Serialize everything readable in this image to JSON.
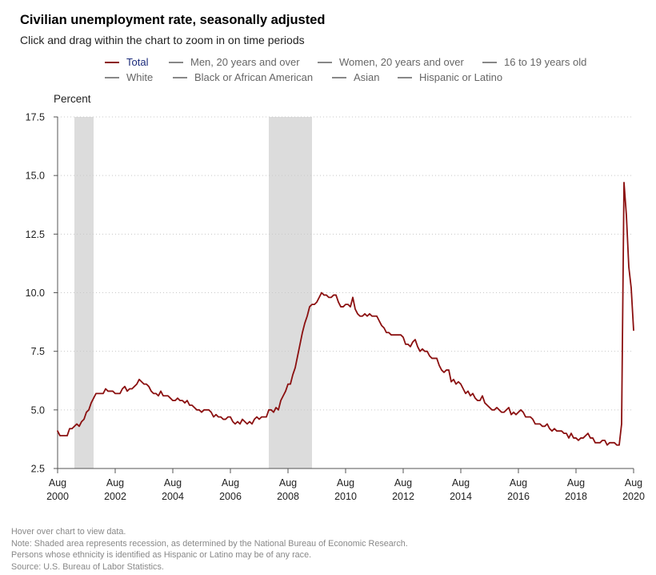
{
  "header": {
    "title": "Civilian unemployment rate, seasonally adjusted",
    "subtitle": "Click and drag within the chart to zoom in on time periods"
  },
  "legend": {
    "items": [
      {
        "label": "Total",
        "active": true
      },
      {
        "label": "Men, 20 years and over",
        "active": false
      },
      {
        "label": "Women, 20 years and over",
        "active": false
      },
      {
        "label": "16 to 19 years old",
        "active": false
      },
      {
        "label": "White",
        "active": false
      },
      {
        "label": "Black or African American",
        "active": false
      },
      {
        "label": "Asian",
        "active": false
      },
      {
        "label": "Hispanic or Latino",
        "active": false
      }
    ]
  },
  "colors": {
    "series_total": "#8b1010",
    "legend_active_text": "#1a2a7a",
    "recession_shade": "#dcdcdc",
    "grid": "#c8c8c8"
  },
  "chart_data": {
    "type": "line",
    "ylabel": "Percent",
    "ylim": [
      2.5,
      17.5
    ],
    "yticks": [
      "2.5",
      "5.0",
      "7.5",
      "10.0",
      "12.5",
      "15.0",
      "17.5"
    ],
    "xlim": [
      "2000-08",
      "2020-08"
    ],
    "xticks": [
      {
        "month": "Aug",
        "year": "2000"
      },
      {
        "month": "Aug",
        "year": "2002"
      },
      {
        "month": "Aug",
        "year": "2004"
      },
      {
        "month": "Aug",
        "year": "2006"
      },
      {
        "month": "Aug",
        "year": "2008"
      },
      {
        "month": "Aug",
        "year": "2010"
      },
      {
        "month": "Aug",
        "year": "2012"
      },
      {
        "month": "Aug",
        "year": "2014"
      },
      {
        "month": "Aug",
        "year": "2016"
      },
      {
        "month": "Aug",
        "year": "2018"
      },
      {
        "month": "Aug",
        "year": "2020"
      }
    ],
    "grid": "horizontal dotted",
    "legend_position": "top",
    "recessions": [
      {
        "start": "2001-03",
        "end": "2001-11"
      },
      {
        "start": "2007-12",
        "end": "2009-06"
      }
    ],
    "series": [
      {
        "name": "Total",
        "points": [
          [
            "2000-08",
            4.1
          ],
          [
            "2000-09",
            3.9
          ],
          [
            "2000-10",
            3.9
          ],
          [
            "2000-11",
            3.9
          ],
          [
            "2000-12",
            3.9
          ],
          [
            "2001-01",
            4.2
          ],
          [
            "2001-02",
            4.2
          ],
          [
            "2001-03",
            4.3
          ],
          [
            "2001-04",
            4.4
          ],
          [
            "2001-05",
            4.3
          ],
          [
            "2001-06",
            4.5
          ],
          [
            "2001-07",
            4.6
          ],
          [
            "2001-08",
            4.9
          ],
          [
            "2001-09",
            5.0
          ],
          [
            "2001-10",
            5.3
          ],
          [
            "2001-11",
            5.5
          ],
          [
            "2001-12",
            5.7
          ],
          [
            "2002-01",
            5.7
          ],
          [
            "2002-02",
            5.7
          ],
          [
            "2002-03",
            5.7
          ],
          [
            "2002-04",
            5.9
          ],
          [
            "2002-05",
            5.8
          ],
          [
            "2002-06",
            5.8
          ],
          [
            "2002-07",
            5.8
          ],
          [
            "2002-08",
            5.7
          ],
          [
            "2002-09",
            5.7
          ],
          [
            "2002-10",
            5.7
          ],
          [
            "2002-11",
            5.9
          ],
          [
            "2002-12",
            6.0
          ],
          [
            "2003-01",
            5.8
          ],
          [
            "2003-02",
            5.9
          ],
          [
            "2003-03",
            5.9
          ],
          [
            "2003-04",
            6.0
          ],
          [
            "2003-05",
            6.1
          ],
          [
            "2003-06",
            6.3
          ],
          [
            "2003-07",
            6.2
          ],
          [
            "2003-08",
            6.1
          ],
          [
            "2003-09",
            6.1
          ],
          [
            "2003-10",
            6.0
          ],
          [
            "2003-11",
            5.8
          ],
          [
            "2003-12",
            5.7
          ],
          [
            "2004-01",
            5.7
          ],
          [
            "2004-02",
            5.6
          ],
          [
            "2004-03",
            5.8
          ],
          [
            "2004-04",
            5.6
          ],
          [
            "2004-05",
            5.6
          ],
          [
            "2004-06",
            5.6
          ],
          [
            "2004-07",
            5.5
          ],
          [
            "2004-08",
            5.4
          ],
          [
            "2004-09",
            5.4
          ],
          [
            "2004-10",
            5.5
          ],
          [
            "2004-11",
            5.4
          ],
          [
            "2004-12",
            5.4
          ],
          [
            "2005-01",
            5.3
          ],
          [
            "2005-02",
            5.4
          ],
          [
            "2005-03",
            5.2
          ],
          [
            "2005-04",
            5.2
          ],
          [
            "2005-05",
            5.1
          ],
          [
            "2005-06",
            5.0
          ],
          [
            "2005-07",
            5.0
          ],
          [
            "2005-08",
            4.9
          ],
          [
            "2005-09",
            5.0
          ],
          [
            "2005-10",
            5.0
          ],
          [
            "2005-11",
            5.0
          ],
          [
            "2005-12",
            4.9
          ],
          [
            "2006-01",
            4.7
          ],
          [
            "2006-02",
            4.8
          ],
          [
            "2006-03",
            4.7
          ],
          [
            "2006-04",
            4.7
          ],
          [
            "2006-05",
            4.6
          ],
          [
            "2006-06",
            4.6
          ],
          [
            "2006-07",
            4.7
          ],
          [
            "2006-08",
            4.7
          ],
          [
            "2006-09",
            4.5
          ],
          [
            "2006-10",
            4.4
          ],
          [
            "2006-11",
            4.5
          ],
          [
            "2006-12",
            4.4
          ],
          [
            "2007-01",
            4.6
          ],
          [
            "2007-02",
            4.5
          ],
          [
            "2007-03",
            4.4
          ],
          [
            "2007-04",
            4.5
          ],
          [
            "2007-05",
            4.4
          ],
          [
            "2007-06",
            4.6
          ],
          [
            "2007-07",
            4.7
          ],
          [
            "2007-08",
            4.6
          ],
          [
            "2007-09",
            4.7
          ],
          [
            "2007-10",
            4.7
          ],
          [
            "2007-11",
            4.7
          ],
          [
            "2007-12",
            5.0
          ],
          [
            "2008-01",
            5.0
          ],
          [
            "2008-02",
            4.9
          ],
          [
            "2008-03",
            5.1
          ],
          [
            "2008-04",
            5.0
          ],
          [
            "2008-05",
            5.4
          ],
          [
            "2008-06",
            5.6
          ],
          [
            "2008-07",
            5.8
          ],
          [
            "2008-08",
            6.1
          ],
          [
            "2008-09",
            6.1
          ],
          [
            "2008-10",
            6.5
          ],
          [
            "2008-11",
            6.8
          ],
          [
            "2008-12",
            7.3
          ],
          [
            "2009-01",
            7.8
          ],
          [
            "2009-02",
            8.3
          ],
          [
            "2009-03",
            8.7
          ],
          [
            "2009-04",
            9.0
          ],
          [
            "2009-05",
            9.4
          ],
          [
            "2009-06",
            9.5
          ],
          [
            "2009-07",
            9.5
          ],
          [
            "2009-08",
            9.6
          ],
          [
            "2009-09",
            9.8
          ],
          [
            "2009-10",
            10.0
          ],
          [
            "2009-11",
            9.9
          ],
          [
            "2009-12",
            9.9
          ],
          [
            "2010-01",
            9.8
          ],
          [
            "2010-02",
            9.8
          ],
          [
            "2010-03",
            9.9
          ],
          [
            "2010-04",
            9.9
          ],
          [
            "2010-05",
            9.6
          ],
          [
            "2010-06",
            9.4
          ],
          [
            "2010-07",
            9.4
          ],
          [
            "2010-08",
            9.5
          ],
          [
            "2010-09",
            9.5
          ],
          [
            "2010-10",
            9.4
          ],
          [
            "2010-11",
            9.8
          ],
          [
            "2010-12",
            9.3
          ],
          [
            "2011-01",
            9.1
          ],
          [
            "2011-02",
            9.0
          ],
          [
            "2011-03",
            9.0
          ],
          [
            "2011-04",
            9.1
          ],
          [
            "2011-05",
            9.0
          ],
          [
            "2011-06",
            9.1
          ],
          [
            "2011-07",
            9.0
          ],
          [
            "2011-08",
            9.0
          ],
          [
            "2011-09",
            9.0
          ],
          [
            "2011-10",
            8.8
          ],
          [
            "2011-11",
            8.6
          ],
          [
            "2011-12",
            8.5
          ],
          [
            "2012-01",
            8.3
          ],
          [
            "2012-02",
            8.3
          ],
          [
            "2012-03",
            8.2
          ],
          [
            "2012-04",
            8.2
          ],
          [
            "2012-05",
            8.2
          ],
          [
            "2012-06",
            8.2
          ],
          [
            "2012-07",
            8.2
          ],
          [
            "2012-08",
            8.1
          ],
          [
            "2012-09",
            7.8
          ],
          [
            "2012-10",
            7.8
          ],
          [
            "2012-11",
            7.7
          ],
          [
            "2012-12",
            7.9
          ],
          [
            "2013-01",
            8.0
          ],
          [
            "2013-02",
            7.7
          ],
          [
            "2013-03",
            7.5
          ],
          [
            "2013-04",
            7.6
          ],
          [
            "2013-05",
            7.5
          ],
          [
            "2013-06",
            7.5
          ],
          [
            "2013-07",
            7.3
          ],
          [
            "2013-08",
            7.2
          ],
          [
            "2013-09",
            7.2
          ],
          [
            "2013-10",
            7.2
          ],
          [
            "2013-11",
            6.9
          ],
          [
            "2013-12",
            6.7
          ],
          [
            "2014-01",
            6.6
          ],
          [
            "2014-02",
            6.7
          ],
          [
            "2014-03",
            6.7
          ],
          [
            "2014-04",
            6.2
          ],
          [
            "2014-05",
            6.3
          ],
          [
            "2014-06",
            6.1
          ],
          [
            "2014-07",
            6.2
          ],
          [
            "2014-08",
            6.1
          ],
          [
            "2014-09",
            5.9
          ],
          [
            "2014-10",
            5.7
          ],
          [
            "2014-11",
            5.8
          ],
          [
            "2014-12",
            5.6
          ],
          [
            "2015-01",
            5.7
          ],
          [
            "2015-02",
            5.5
          ],
          [
            "2015-03",
            5.4
          ],
          [
            "2015-04",
            5.4
          ],
          [
            "2015-05",
            5.6
          ],
          [
            "2015-06",
            5.3
          ],
          [
            "2015-07",
            5.2
          ],
          [
            "2015-08",
            5.1
          ],
          [
            "2015-09",
            5.0
          ],
          [
            "2015-10",
            5.0
          ],
          [
            "2015-11",
            5.1
          ],
          [
            "2015-12",
            5.0
          ],
          [
            "2016-01",
            4.9
          ],
          [
            "2016-02",
            4.9
          ],
          [
            "2016-03",
            5.0
          ],
          [
            "2016-04",
            5.1
          ],
          [
            "2016-05",
            4.8
          ],
          [
            "2016-06",
            4.9
          ],
          [
            "2016-07",
            4.8
          ],
          [
            "2016-08",
            4.9
          ],
          [
            "2016-09",
            5.0
          ],
          [
            "2016-10",
            4.9
          ],
          [
            "2016-11",
            4.7
          ],
          [
            "2016-12",
            4.7
          ],
          [
            "2017-01",
            4.7
          ],
          [
            "2017-02",
            4.6
          ],
          [
            "2017-03",
            4.4
          ],
          [
            "2017-04",
            4.4
          ],
          [
            "2017-05",
            4.4
          ],
          [
            "2017-06",
            4.3
          ],
          [
            "2017-07",
            4.3
          ],
          [
            "2017-08",
            4.4
          ],
          [
            "2017-09",
            4.2
          ],
          [
            "2017-10",
            4.1
          ],
          [
            "2017-11",
            4.2
          ],
          [
            "2017-12",
            4.1
          ],
          [
            "2018-01",
            4.1
          ],
          [
            "2018-02",
            4.1
          ],
          [
            "2018-03",
            4.0
          ],
          [
            "2018-04",
            4.0
          ],
          [
            "2018-05",
            3.8
          ],
          [
            "2018-06",
            4.0
          ],
          [
            "2018-07",
            3.8
          ],
          [
            "2018-08",
            3.8
          ],
          [
            "2018-09",
            3.7
          ],
          [
            "2018-10",
            3.8
          ],
          [
            "2018-11",
            3.8
          ],
          [
            "2018-12",
            3.9
          ],
          [
            "2019-01",
            4.0
          ],
          [
            "2019-02",
            3.8
          ],
          [
            "2019-03",
            3.8
          ],
          [
            "2019-04",
            3.6
          ],
          [
            "2019-05",
            3.6
          ],
          [
            "2019-06",
            3.6
          ],
          [
            "2019-07",
            3.7
          ],
          [
            "2019-08",
            3.7
          ],
          [
            "2019-09",
            3.5
          ],
          [
            "2019-10",
            3.6
          ],
          [
            "2019-11",
            3.6
          ],
          [
            "2019-12",
            3.6
          ],
          [
            "2020-01",
            3.5
          ],
          [
            "2020-02",
            3.5
          ],
          [
            "2020-03",
            4.4
          ],
          [
            "2020-04",
            14.7
          ],
          [
            "2020-05",
            13.3
          ],
          [
            "2020-06",
            11.1
          ],
          [
            "2020-07",
            10.2
          ],
          [
            "2020-08",
            8.4
          ]
        ]
      }
    ]
  },
  "footer": {
    "hover_note": "Hover over chart to view data.",
    "note": "Note: Shaded area represents recession, as determined by the National Bureau of Economic Research.",
    "ethnicity_note": "Persons whose ethnicity is identified as Hispanic or Latino may be of any race.",
    "source": "Source: U.S. Bureau of Labor Statistics."
  }
}
